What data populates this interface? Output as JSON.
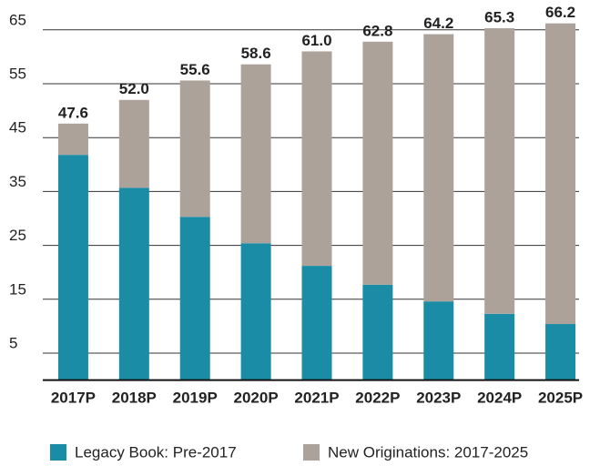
{
  "chart_data": {
    "type": "stacked_bar",
    "categories": [
      "2017P",
      "2018P",
      "2019P",
      "2020P",
      "2021P",
      "2022P",
      "2023P",
      "2024P",
      "2025P"
    ],
    "series": [
      {
        "name": "Legacy Book: Pre-2017",
        "color": "#1a8ca6",
        "values": [
          41.8,
          35.7,
          30.3,
          25.4,
          21.2,
          17.7,
          14.6,
          12.3,
          10.4
        ]
      },
      {
        "name": "New Originations: 2017-2025",
        "color": "#ada29a",
        "values": [
          5.8,
          16.3,
          25.3,
          33.2,
          39.8,
          45.1,
          49.6,
          53.0,
          55.8
        ]
      }
    ],
    "totals": [
      47.6,
      52,
      55.6,
      58.6,
      61,
      62.8,
      64.2,
      65.3,
      66.2
    ],
    "total_labels": [
      "47.6",
      "52.0",
      "55.6",
      "58.6",
      "61.0",
      "62.8",
      "64.2",
      "65.3",
      "66.2"
    ],
    "ylim": [
      0,
      70
    ],
    "yticks": [
      5,
      15,
      25,
      35,
      45,
      55,
      65
    ],
    "grid": true,
    "legend": "bottom"
  }
}
